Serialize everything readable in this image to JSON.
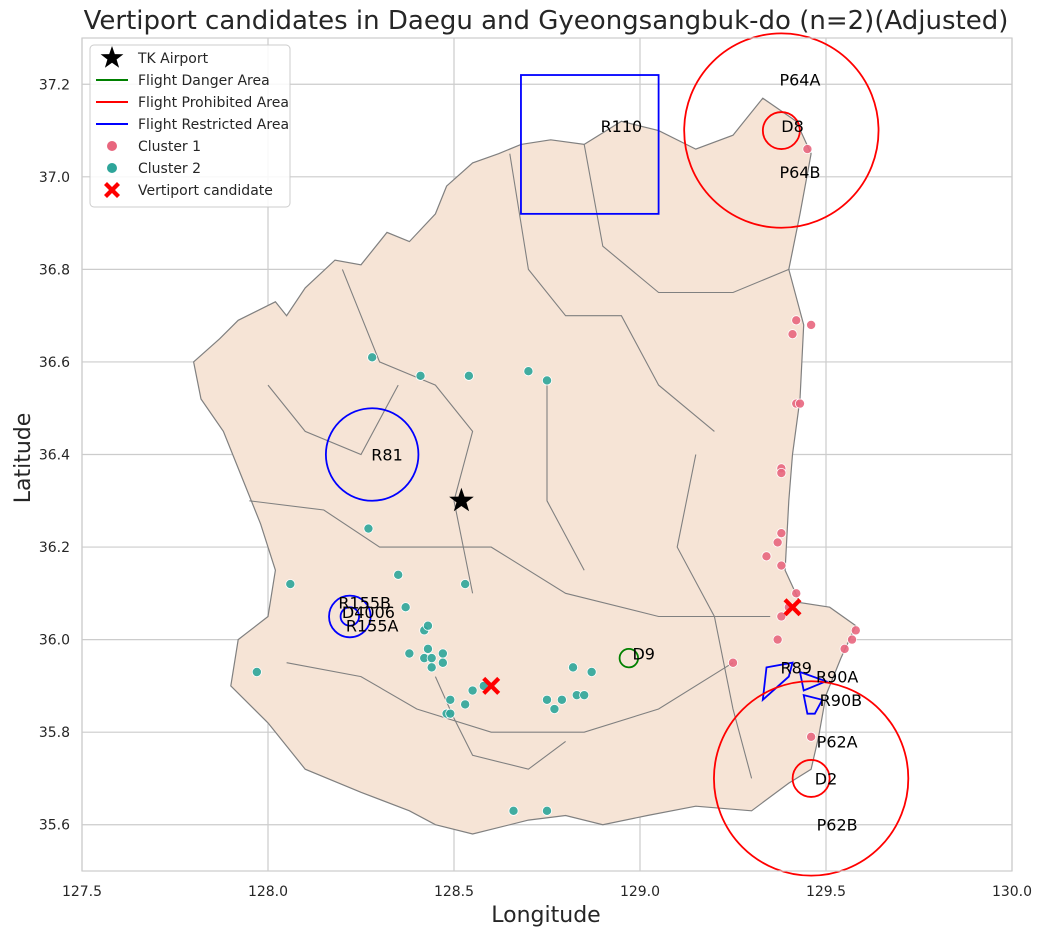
{
  "chart_data": {
    "type": "scatter",
    "title": "Vertiport candidates in Daegu and Gyeongsangbuk-do (n=2)(Adjusted)",
    "xlabel": "Longitude",
    "ylabel": "Latitude",
    "xlim": [
      127.5,
      130.0
    ],
    "ylim": [
      35.5,
      37.3
    ],
    "xticks": [
      127.5,
      128.0,
      128.5,
      129.0,
      129.5,
      130.0
    ],
    "xtick_labels": [
      "127.5",
      "128.0",
      "128.5",
      "129.0",
      "129.5",
      "130.0"
    ],
    "yticks": [
      35.6,
      35.8,
      36.0,
      36.2,
      36.4,
      36.6,
      36.8,
      37.0,
      37.2
    ],
    "ytick_labels": [
      "35.6",
      "35.8",
      "36.0",
      "36.2",
      "36.4",
      "36.6",
      "36.8",
      "37.0",
      "37.2"
    ],
    "grid": true,
    "legend_position": "top-left",
    "colors": {
      "cluster1": "#e8667e",
      "cluster2": "#2ea59a",
      "danger": "#008000",
      "prohibited": "#ff0000",
      "restricted": "#0000ff",
      "region_fill": "#f6e4d6",
      "region_edge": "#808080",
      "grid": "#cccccc"
    },
    "legend": [
      {
        "label": "TK Airport",
        "marker": "star",
        "color": "#000000"
      },
      {
        "label": "Flight Danger Area",
        "marker": "line",
        "color": "#008000"
      },
      {
        "label": "Flight Prohibited Area",
        "marker": "line",
        "color": "#ff0000"
      },
      {
        "label": "Flight Restricted Area",
        "marker": "line",
        "color": "#0000ff"
      },
      {
        "label": "Cluster 1",
        "marker": "dot",
        "color": "#e8667e"
      },
      {
        "label": "Cluster 2",
        "marker": "dot",
        "color": "#2ea59a"
      },
      {
        "label": "Vertiport candidate",
        "marker": "x",
        "color": "#ff0000"
      }
    ],
    "airport": {
      "name": "TK Airport",
      "x": 128.52,
      "y": 36.3
    },
    "vertiports": [
      {
        "x": 128.6,
        "y": 35.9
      },
      {
        "x": 129.41,
        "y": 36.07
      }
    ],
    "series": [
      {
        "name": "Cluster 1",
        "points": [
          [
            129.45,
            37.06
          ],
          [
            129.42,
            36.69
          ],
          [
            129.46,
            36.68
          ],
          [
            129.41,
            36.66
          ],
          [
            129.42,
            36.51
          ],
          [
            129.43,
            36.51
          ],
          [
            129.38,
            36.37
          ],
          [
            129.38,
            36.36
          ],
          [
            129.38,
            36.23
          ],
          [
            129.37,
            36.21
          ],
          [
            129.34,
            36.18
          ],
          [
            129.38,
            36.16
          ],
          [
            129.42,
            36.1
          ],
          [
            129.4,
            36.07
          ],
          [
            129.38,
            36.05
          ],
          [
            129.37,
            36.0
          ],
          [
            129.25,
            35.95
          ],
          [
            129.58,
            36.02
          ],
          [
            129.57,
            36.0
          ],
          [
            129.55,
            35.98
          ],
          [
            129.46,
            35.79
          ]
        ]
      },
      {
        "name": "Cluster 2",
        "points": [
          [
            128.28,
            36.61
          ],
          [
            128.41,
            36.57
          ],
          [
            128.54,
            36.57
          ],
          [
            128.7,
            36.58
          ],
          [
            128.75,
            36.56
          ],
          [
            128.27,
            36.24
          ],
          [
            128.35,
            36.14
          ],
          [
            128.53,
            36.12
          ],
          [
            128.06,
            36.12
          ],
          [
            128.37,
            36.07
          ],
          [
            128.42,
            36.02
          ],
          [
            128.43,
            36.03
          ],
          [
            128.43,
            35.98
          ],
          [
            128.38,
            35.97
          ],
          [
            128.42,
            35.96
          ],
          [
            128.44,
            35.96
          ],
          [
            128.47,
            35.97
          ],
          [
            128.47,
            35.95
          ],
          [
            128.44,
            35.94
          ],
          [
            128.82,
            35.94
          ],
          [
            128.87,
            35.93
          ],
          [
            127.97,
            35.93
          ],
          [
            128.55,
            35.89
          ],
          [
            128.58,
            35.9
          ],
          [
            128.49,
            35.87
          ],
          [
            128.53,
            35.86
          ],
          [
            128.75,
            35.87
          ],
          [
            128.79,
            35.87
          ],
          [
            128.83,
            35.88
          ],
          [
            128.85,
            35.88
          ],
          [
            128.77,
            35.85
          ],
          [
            128.48,
            35.84
          ],
          [
            128.49,
            35.84
          ],
          [
            128.66,
            35.63
          ],
          [
            128.75,
            35.63
          ]
        ]
      }
    ],
    "zones": [
      {
        "label": "R110",
        "kind": "restricted",
        "shape": "rect",
        "x0": 128.68,
        "x1": 129.05,
        "y0": 36.92,
        "y1": 37.22,
        "label_at": [
          128.95,
          37.11
        ]
      },
      {
        "label": "R81",
        "kind": "restricted",
        "shape": "circle",
        "cx": 128.28,
        "cy": 36.4,
        "r": 0.1,
        "label_at": [
          128.32,
          36.4
        ]
      },
      {
        "label": "R155B",
        "kind": "restricted",
        "shape": "circle",
        "cx": 128.22,
        "cy": 36.05,
        "r": 0.045,
        "label_at": [
          128.26,
          36.08
        ]
      },
      {
        "label": "D4006",
        "kind": "restricted",
        "shape": "circle",
        "cx": 128.22,
        "cy": 36.05,
        "r": 0.02,
        "label_at": [
          128.27,
          36.06
        ]
      },
      {
        "label": "R155A",
        "kind": "restricted",
        "shape": "none",
        "label_at": [
          128.28,
          36.03
        ]
      },
      {
        "label": "P64A",
        "kind": "prohibited",
        "shape": "circle",
        "cx": 129.38,
        "cy": 37.1,
        "r": 0.21,
        "label_at": [
          129.43,
          37.21
        ]
      },
      {
        "label": "D8",
        "kind": "prohibited",
        "shape": "circle",
        "cx": 129.38,
        "cy": 37.1,
        "r": 0.04,
        "label_at": [
          129.41,
          37.11
        ]
      },
      {
        "label": "P64B",
        "kind": "prohibited",
        "shape": "none",
        "label_at": [
          129.43,
          37.01
        ]
      },
      {
        "label": "D9",
        "kind": "danger",
        "shape": "circle",
        "cx": 128.97,
        "cy": 35.96,
        "r": 0.02,
        "label_at": [
          129.01,
          35.97
        ]
      },
      {
        "label": "R89",
        "kind": "restricted",
        "shape": "poly",
        "points": [
          [
            129.33,
            35.87
          ],
          [
            129.34,
            35.94
          ],
          [
            129.41,
            35.95
          ],
          [
            129.4,
            35.92
          ]
        ],
        "label_at": [
          129.42,
          35.94
        ]
      },
      {
        "label": "R90A",
        "kind": "restricted",
        "shape": "poly",
        "points": [
          [
            129.43,
            35.93
          ],
          [
            129.5,
            35.91
          ],
          [
            129.44,
            35.89
          ]
        ],
        "label_at": [
          129.53,
          35.92
        ]
      },
      {
        "label": "R90B",
        "kind": "restricted",
        "shape": "poly",
        "points": [
          [
            129.44,
            35.88
          ],
          [
            129.49,
            35.87
          ],
          [
            129.47,
            35.84
          ],
          [
            129.45,
            35.84
          ]
        ],
        "label_at": [
          129.54,
          35.87
        ]
      },
      {
        "label": "P62A",
        "kind": "prohibited",
        "shape": "none",
        "label_at": [
          129.53,
          35.78
        ]
      },
      {
        "label": "D2",
        "kind": "prohibited",
        "shape": "circle",
        "cx": 129.46,
        "cy": 35.7,
        "r": 0.04,
        "label_at": [
          129.5,
          35.7
        ]
      },
      {
        "label": "P62B",
        "kind": "prohibited",
        "shape": "circle",
        "cx": 129.46,
        "cy": 35.7,
        "r": 0.21,
        "label_at": [
          129.53,
          35.6
        ]
      }
    ]
  }
}
